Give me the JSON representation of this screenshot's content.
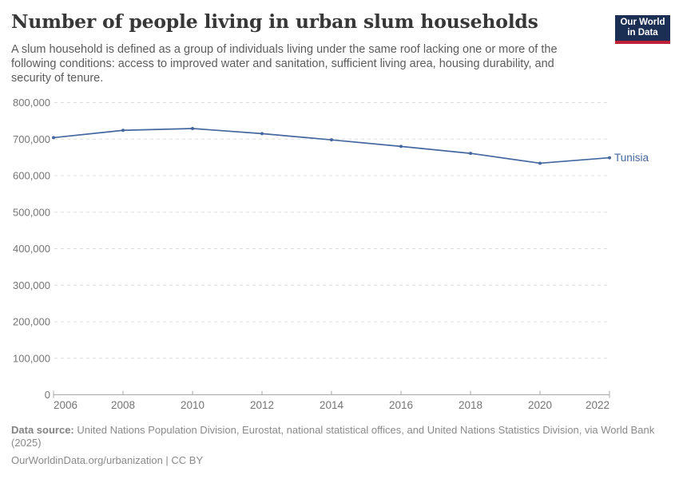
{
  "header": {
    "title": "Number of people living in urban slum households",
    "subtitle": "A slum household is defined as a group of individuals living under the same roof lacking one or more of the following conditions: access to improved water and sanitation, sufficient living area, housing durability, and security of tenure."
  },
  "logo": {
    "line1": "Our World",
    "line2": "in Data",
    "bg_color": "#1b2e54",
    "stripe_color": "#be2137"
  },
  "chart_data": {
    "type": "line",
    "title": "Number of people living in urban slum households",
    "x": [
      2006,
      2008,
      2010,
      2012,
      2014,
      2016,
      2018,
      2020,
      2022
    ],
    "series": [
      {
        "name": "Tunisia",
        "color": "#45679f",
        "values": [
          704000,
          724000,
          729000,
          715000,
          698000,
          680000,
          661000,
          634000,
          649000
        ]
      }
    ],
    "xlabel": "",
    "ylabel": "",
    "ylim": [
      0,
      800000
    ],
    "ytick_interval": 100000,
    "ytick_labels": [
      "0",
      "100,000",
      "200,000",
      "300,000",
      "400,000",
      "500,000",
      "600,000",
      "700,000",
      "800,000"
    ],
    "grid": "horizontal-dashed",
    "legend_position": "line-end-label"
  },
  "footer": {
    "source_label": "Data source:",
    "source_text": "United Nations Population Division, Eurostat, national statistical offices, and United Nations Statistics Division, via World Bank",
    "source_year": "(2025)",
    "url_text": "OurWorldinData.org/urbanization | CC BY"
  },
  "colors": {
    "line": "#45679f",
    "grid": "#dcdcdc",
    "axis": "#a8a8a8",
    "tick_text": "#757575",
    "title_text": "#373737",
    "subtitle_text": "#5b5b5b",
    "footer_text": "#8a8a8a"
  }
}
